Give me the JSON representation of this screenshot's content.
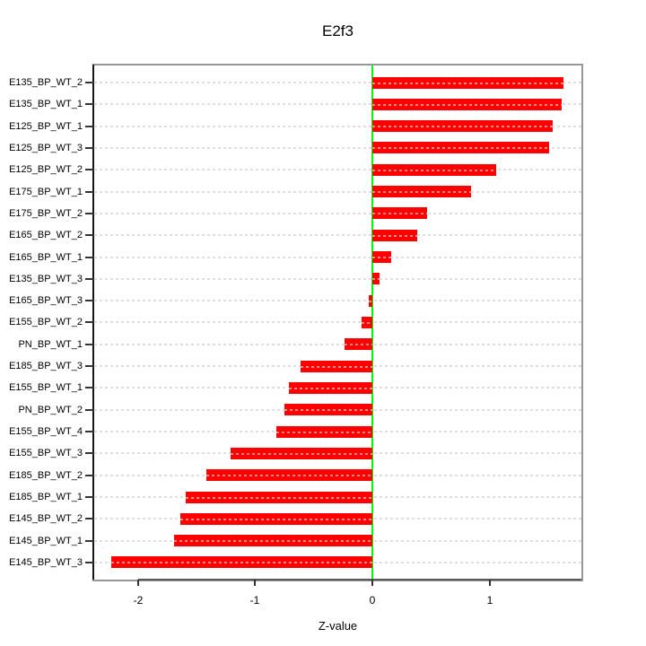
{
  "title": "E2f3",
  "chart_data": {
    "type": "bar",
    "orientation": "horizontal",
    "title": "E2f3",
    "xlabel": "Z-value",
    "ylabel": "",
    "categories": [
      "E135_BP_WT_2",
      "E135_BP_WT_1",
      "E125_BP_WT_1",
      "E125_BP_WT_3",
      "E125_BP_WT_2",
      "E175_BP_WT_1",
      "E175_BP_WT_2",
      "E165_BP_WT_2",
      "E165_BP_WT_1",
      "E135_BP_WT_3",
      "E165_BP_WT_3",
      "E155_BP_WT_2",
      "PN_BP_WT_1",
      "E185_BP_WT_3",
      "E155_BP_WT_1",
      "PN_BP_WT_2",
      "E155_BP_WT_4",
      "E155_BP_WT_3",
      "E185_BP_WT_2",
      "E185_BP_WT_1",
      "E145_BP_WT_2",
      "E145_BP_WT_1",
      "E145_BP_WT_3"
    ],
    "values": [
      1.63,
      1.62,
      1.54,
      1.51,
      1.06,
      0.84,
      0.47,
      0.38,
      0.16,
      0.06,
      -0.03,
      -0.09,
      -0.24,
      -0.61,
      -0.71,
      -0.75,
      -0.82,
      -1.21,
      -1.42,
      -1.59,
      -1.64,
      -1.69,
      -2.23
    ],
    "x_ticks": [
      -2,
      -1,
      0,
      1
    ],
    "x_tick_labels": [
      "-2",
      "-1",
      "0",
      "1"
    ],
    "xlim": [
      -2.375,
      1.785
    ],
    "grid": true,
    "legend": false,
    "bar_color": "#ff0000",
    "zero_line_color": "#00ff00",
    "grid_color": "#dedede",
    "box_color": "#979797"
  }
}
